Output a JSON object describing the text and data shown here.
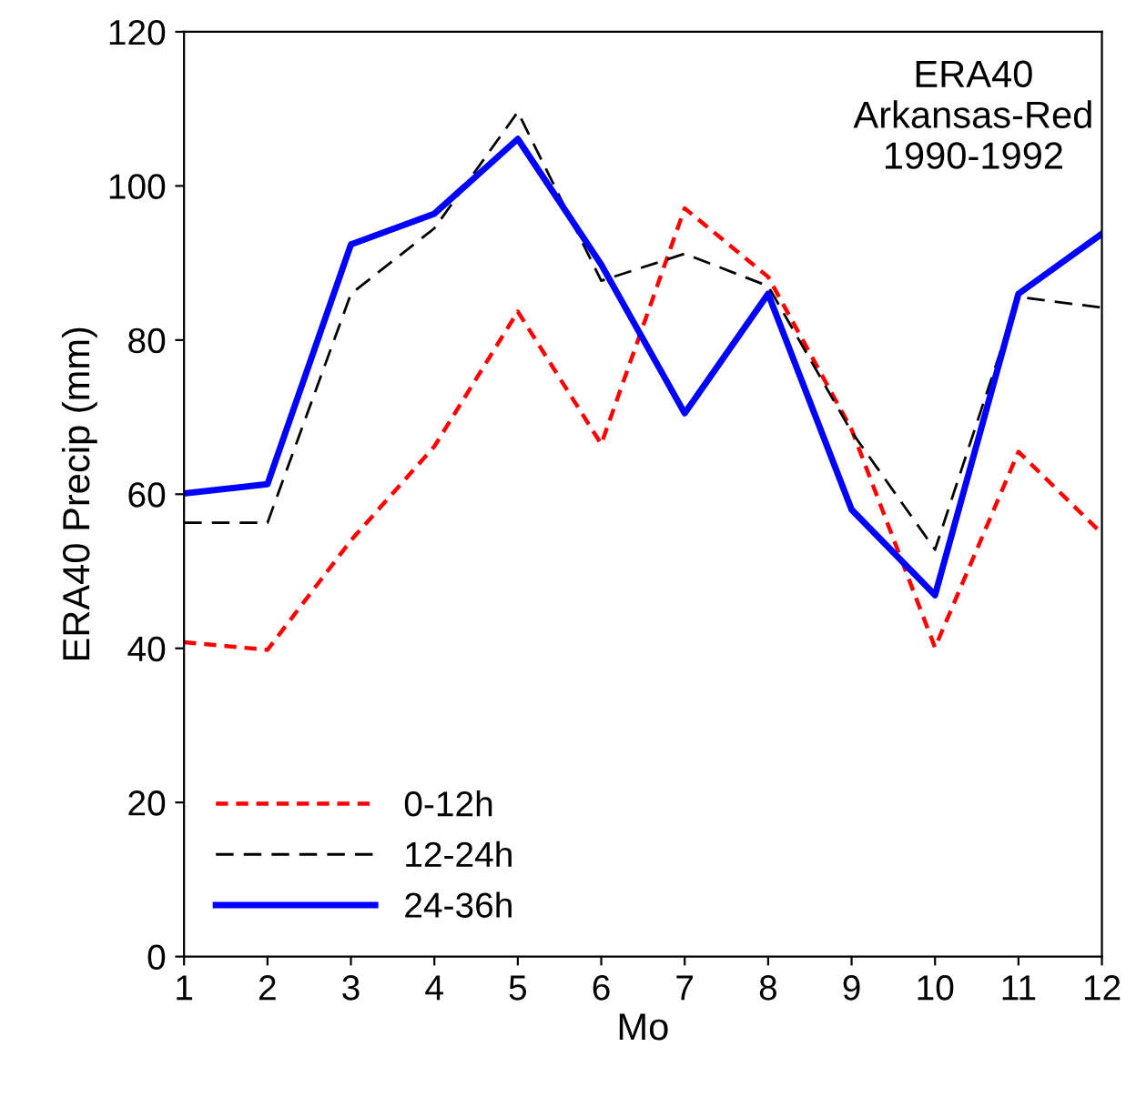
{
  "chart_data": {
    "type": "line",
    "xlabel": "Mo",
    "ylabel": "ERA40 Precip (mm)",
    "x": [
      1,
      2,
      3,
      4,
      5,
      6,
      7,
      8,
      9,
      10,
      11,
      12
    ],
    "series": [
      {
        "name": "0-12h",
        "color": "#ff0000",
        "line_style": "dashed",
        "values": [
          40.8,
          39.8,
          54,
          66.2,
          83.7,
          66.5,
          97.1,
          88.2,
          68.4,
          40.1,
          65.5,
          54.9
        ]
      },
      {
        "name": "12-24h",
        "color": "#000000",
        "line_style": "dashed",
        "values": [
          56.3,
          56.3,
          86,
          94.5,
          109.6,
          87.7,
          91.2,
          87,
          68.1,
          52.8,
          85.6,
          84.2
        ]
      },
      {
        "name": "24-36h",
        "color": "#0000ff",
        "line_style": "solid",
        "values": [
          60.1,
          61.3,
          92.4,
          96.4,
          106.1,
          89.8,
          70.5,
          86,
          58,
          46.9,
          86,
          93.8
        ]
      }
    ],
    "xlim": [
      1,
      12
    ],
    "xticks": [
      1,
      2,
      3,
      4,
      5,
      6,
      7,
      8,
      9,
      10,
      11,
      12
    ],
    "ylim": [
      0,
      120
    ],
    "yticks": [
      0,
      20,
      40,
      60,
      80,
      100,
      120
    ],
    "grid": false,
    "legend": "bottom left",
    "marker": "none",
    "annotations": [
      "ERA40\nArkansas-Red\n1990-1992"
    ]
  }
}
